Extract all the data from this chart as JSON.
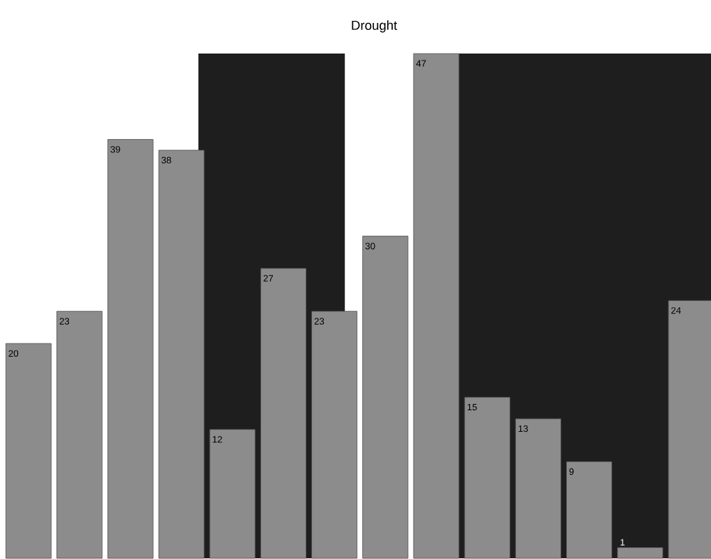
{
  "chart_data": {
    "type": "bar",
    "title": "Drought",
    "categories": [
      null,
      null,
      null,
      null,
      null,
      null,
      null,
      null,
      null,
      null,
      null,
      null,
      null,
      null
    ],
    "values": [
      20,
      23,
      39,
      38,
      12,
      27,
      23,
      30,
      47,
      15,
      13,
      9,
      1,
      24
    ],
    "color": "#8c8c8c",
    "data_labels": true
  }
}
